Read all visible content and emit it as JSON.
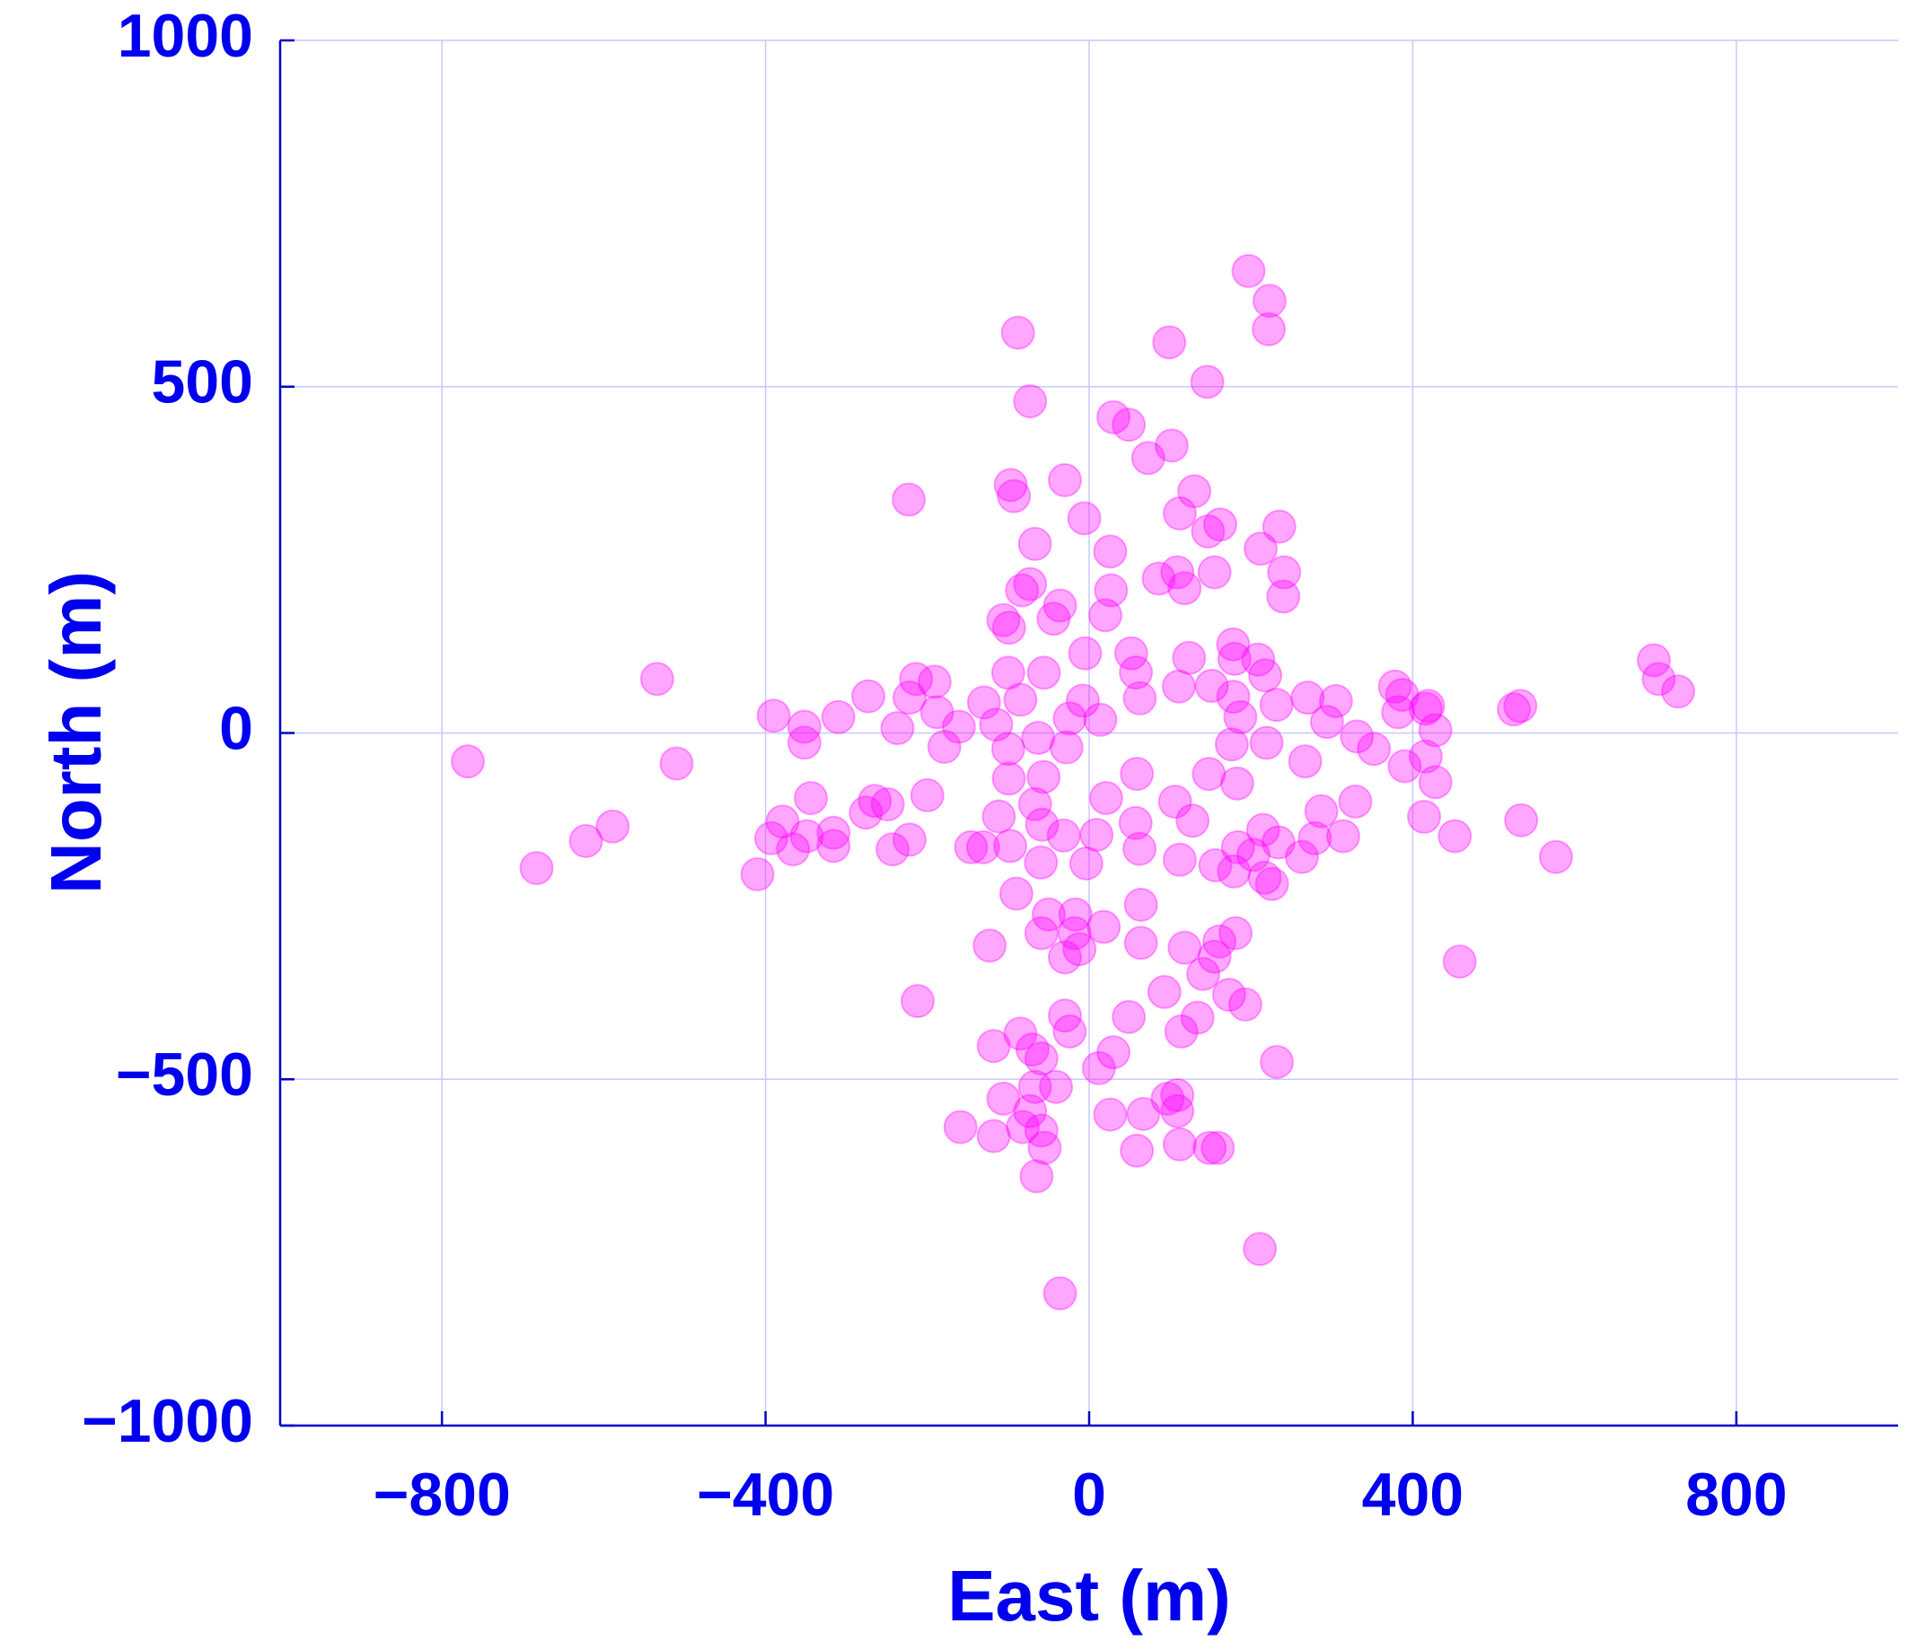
{
  "chart_data": {
    "type": "scatter",
    "xlabel": "East (m)",
    "ylabel": "North (m)",
    "xlim": [
      -1000,
      1000
    ],
    "xticks": [
      {
        "value": -800,
        "label": "−800"
      },
      {
        "value": -400,
        "label": "−400"
      },
      0,
      400,
      800
    ],
    "ylim": [
      -1000,
      1000
    ],
    "yticks": [
      {
        "value": -1000,
        "label": "−1000"
      },
      {
        "value": -500,
        "label": "−500"
      },
      0,
      500,
      1000
    ],
    "grid": true,
    "color": "#ff00ff",
    "x": [
      217.6,
      179.6,
      123.5,
      57.8,
      -7.8,
      -63,
      -99.3,
      -111.6,
      -97.6,
      -59.6,
      -3.5,
      62.2,
      127.8,
      183,
      219.3,
      231.6,
      178.2,
      151.5,
      110.9,
      62.6,
      13.8,
      -28,
      -56.3,
      -66.9,
      -58.2,
      -31.5,
      9.1,
      57.4,
      106.2,
      148,
      176.3,
      186.9,
      197,
      223,
      222,
      -88,
      99,
      146,
      -73,
      30,
      49,
      102,
      73,
      -30,
      -97,
      -93,
      -223,
      130,
      112,
      -6,
      162,
      147,
      235,
      -67,
      26,
      212,
      86,
      109,
      155,
      241,
      240,
      -73,
      -83,
      -36,
      27,
      20,
      -44,
      -106,
      -99,
      118,
      -5,
      52,
      -56,
      -100,
      178,
      209,
      270,
      305,
      378,
      387,
      416,
      419,
      428,
      382,
      390,
      416,
      428,
      331,
      352,
      329,
      287,
      314,
      279,
      263,
      414,
      452,
      458,
      534,
      577,
      525,
      533,
      698,
      704,
      728,
      -534,
      -768,
      -510,
      -683,
      -622,
      -589,
      -410,
      -393,
      -379,
      -366,
      -349,
      -316,
      -316,
      -344,
      -390,
      -352,
      -352,
      -310,
      -273,
      -276,
      -265,
      -249,
      -243,
      -222,
      -200,
      -237,
      -222,
      -191,
      -214,
      -188,
      -179,
      -161,
      -130,
      -115,
      -212,
      -123,
      -118,
      -85,
      -70,
      -59,
      -30,
      -24,
      -41,
      -67,
      -106,
      -73,
      -159,
      -118,
      -82,
      -59,
      -55,
      -65,
      12,
      30,
      49,
      26,
      67,
      59,
      93,
      114,
      134,
      97,
      109,
      109,
      112,
      149,
      159,
      173,
      193,
      232,
      211,
      -36,
      118,
      141,
      161,
      181,
      155,
      64,
      -18,
      -30,
      -12,
      -59,
      -50,
      -17,
      18,
      64,
      -90,
      179,
      203,
      226,
      217,
      234,
      215,
      156,
      184,
      112,
      267,
      294,
      -146,
      -131,
      -85,
      -24,
      -100,
      59,
      21
    ],
    "y": [
      83.2,
      107,
      108.4,
      87.3,
      46.7,
      -7.1,
      -65.8,
      -120.6,
      -163.2,
      -187,
      -188.4,
      -167.3,
      -126.7,
      -72.9,
      -14.2,
      40.6,
      52.4,
      68,
      67.1,
      50,
      19.1,
      -20.8,
      -63.5,
      -102.8,
      -132.4,
      -148,
      -147.1,
      -130,
      -99.1,
      -59.2,
      -16.5,
      22.8,
      667,
      624,
      583,
      578,
      564,
      507,
      479,
      456,
      445,
      415,
      397,
      365,
      358,
      342,
      337,
      349,
      317,
      310,
      301,
      291,
      298,
      273,
      262,
      266,
      223,
      232,
      232,
      232,
      197,
      215,
      206,
      184,
      206,
      170,
      165,
      163,
      152,
      209,
      115,
      115,
      87,
      87,
      128,
      106,
      51,
      46,
      67,
      55,
      35,
      39,
      4,
      30,
      -48,
      -34,
      -71,
      -5,
      -23,
      -99,
      -113,
      -149,
      -152,
      -179,
      -121,
      -149,
      -330,
      -126,
      -179,
      34,
      39,
      105,
      78,
      60,
      78,
      -41,
      -44,
      -195,
      -156,
      -135,
      -204,
      -152,
      -128,
      -168,
      -149,
      -163,
      -144,
      -94,
      25,
      9,
      -14,
      23,
      53,
      -115,
      -98,
      -103,
      -168,
      -154,
      -90,
      7,
      51,
      74,
      78,
      30,
      -20,
      9,
      44,
      12,
      -387,
      -307,
      -452,
      -434,
      -457,
      -470,
      -408,
      -431,
      -511,
      -511,
      -528,
      -546,
      -569,
      -582,
      -569,
      -574,
      -599,
      -640,
      -484,
      -461,
      -410,
      -551,
      -550,
      -603,
      -374,
      -431,
      -411,
      -528,
      -523,
      -546,
      -594,
      -599,
      -599,
      -378,
      -392,
      -475,
      -745,
      -809,
      -310,
      -348,
      -301,
      -289,
      -323,
      -303,
      -289,
      -324,
      -312,
      -289,
      -262,
      -262,
      -280,
      -248,
      -232,
      -200,
      -176,
      -218,
      -209,
      -158,
      -140,
      -191,
      -165,
      -183,
      -41,
      16,
      -165,
      -165,
      48,
      21,
      -23,
      -59,
      -94
    ]
  }
}
